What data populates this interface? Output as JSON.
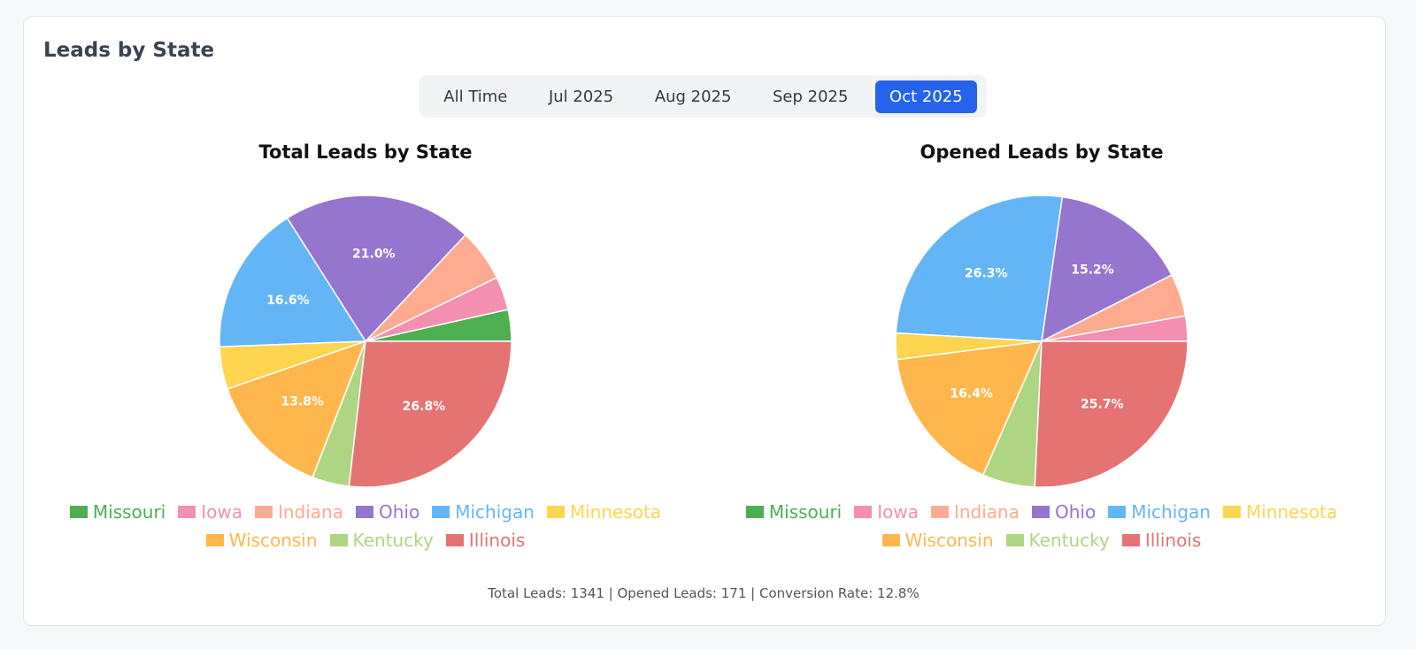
{
  "header": {
    "title": "Leads by State"
  },
  "tabs": [
    "All Time",
    "Jul 2025",
    "Aug 2025",
    "Sep 2025",
    "Oct 2025"
  ],
  "chart_data": [
    {
      "type": "pie",
      "title": "Total Leads by State",
      "categories": [
        "Missouri",
        "Iowa",
        "Indiana",
        "Ohio",
        "Michigan",
        "Minnesota",
        "Wisconsin",
        "Kentucky",
        "Illinois"
      ],
      "values": [
        3.5,
        3.7,
        5.8,
        21.0,
        16.6,
        4.7,
        13.8,
        4.1,
        26.8
      ],
      "value_labels": [
        null,
        null,
        null,
        "21.0%",
        "16.6%",
        null,
        "13.8%",
        null,
        "26.8%"
      ],
      "colors": [
        "#4caf50",
        "#f48fb1",
        "#ffab91",
        "#9575cd",
        "#64b5f6",
        "#ffd54f",
        "#ffb74d",
        "#aed581",
        "#e57373"
      ]
    },
    {
      "type": "pie",
      "title": "Opened Leads by State",
      "categories": [
        "Missouri",
        "Iowa",
        "Indiana",
        "Ohio",
        "Michigan",
        "Minnesota",
        "Wisconsin",
        "Kentucky",
        "Illinois"
      ],
      "values": [
        0,
        2.8,
        4.7,
        15.2,
        26.3,
        2.9,
        16.4,
        5.8,
        25.7
      ],
      "value_labels": [
        null,
        null,
        null,
        "15.2%",
        "26.3%",
        null,
        "16.4%",
        null,
        "25.7%"
      ],
      "colors": [
        "#4caf50",
        "#f48fb1",
        "#ffab91",
        "#9575cd",
        "#64b5f6",
        "#ffd54f",
        "#ffb74d",
        "#aed581",
        "#e57373"
      ]
    }
  ],
  "footer": "Total Leads: 1341 | Opened Leads: 171 | Conversion Rate: 12.8%"
}
